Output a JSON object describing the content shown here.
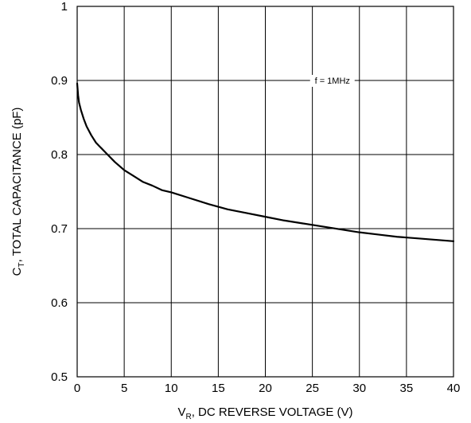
{
  "chart_data": {
    "type": "line",
    "title": "",
    "xlabel": "V_R, DC REVERSE VOLTAGE (V)",
    "xlabel_parts": {
      "main": "V",
      "sub": "R",
      "rest": ", DC REVERSE VOLTAGE (V)"
    },
    "ylabel": "C_T, TOTAL CAPACITANCE (pF)",
    "ylabel_parts": {
      "main": "C",
      "sub": "T",
      "rest": ", TOTAL CAPACITANCE (pF)"
    },
    "xlim": [
      0,
      40
    ],
    "ylim": [
      0.5,
      1.0
    ],
    "x_ticks": [
      0,
      5,
      10,
      15,
      20,
      25,
      30,
      35,
      40
    ],
    "x_tick_labels": [
      "0",
      "5",
      "10",
      "15",
      "20",
      "25",
      "30",
      "35",
      "40"
    ],
    "y_ticks": [
      0.5,
      0.6,
      0.7,
      0.8,
      0.9,
      1.0
    ],
    "y_tick_labels": [
      "0.5",
      "0.6",
      "0.7",
      "0.8",
      "0.9",
      "1"
    ],
    "grid": true,
    "annotation": {
      "text": "f = 1MHz",
      "x": 30,
      "y": 0.9
    },
    "series": [
      {
        "color": "#000000",
        "x": [
          0,
          0.1,
          0.2,
          0.4,
          0.7,
          1,
          1.5,
          2,
          3,
          4,
          5,
          6,
          7,
          8,
          9,
          10,
          12,
          14,
          16,
          18,
          20,
          22,
          24,
          26,
          28,
          30,
          32,
          34,
          36,
          38,
          40
        ],
        "y": [
          0.896,
          0.88,
          0.87,
          0.86,
          0.848,
          0.838,
          0.826,
          0.816,
          0.803,
          0.79,
          0.779,
          0.771,
          0.763,
          0.758,
          0.752,
          0.749,
          0.741,
          0.733,
          0.726,
          0.721,
          0.716,
          0.711,
          0.707,
          0.703,
          0.699,
          0.695,
          0.692,
          0.689,
          0.687,
          0.685,
          0.683
        ]
      }
    ]
  }
}
